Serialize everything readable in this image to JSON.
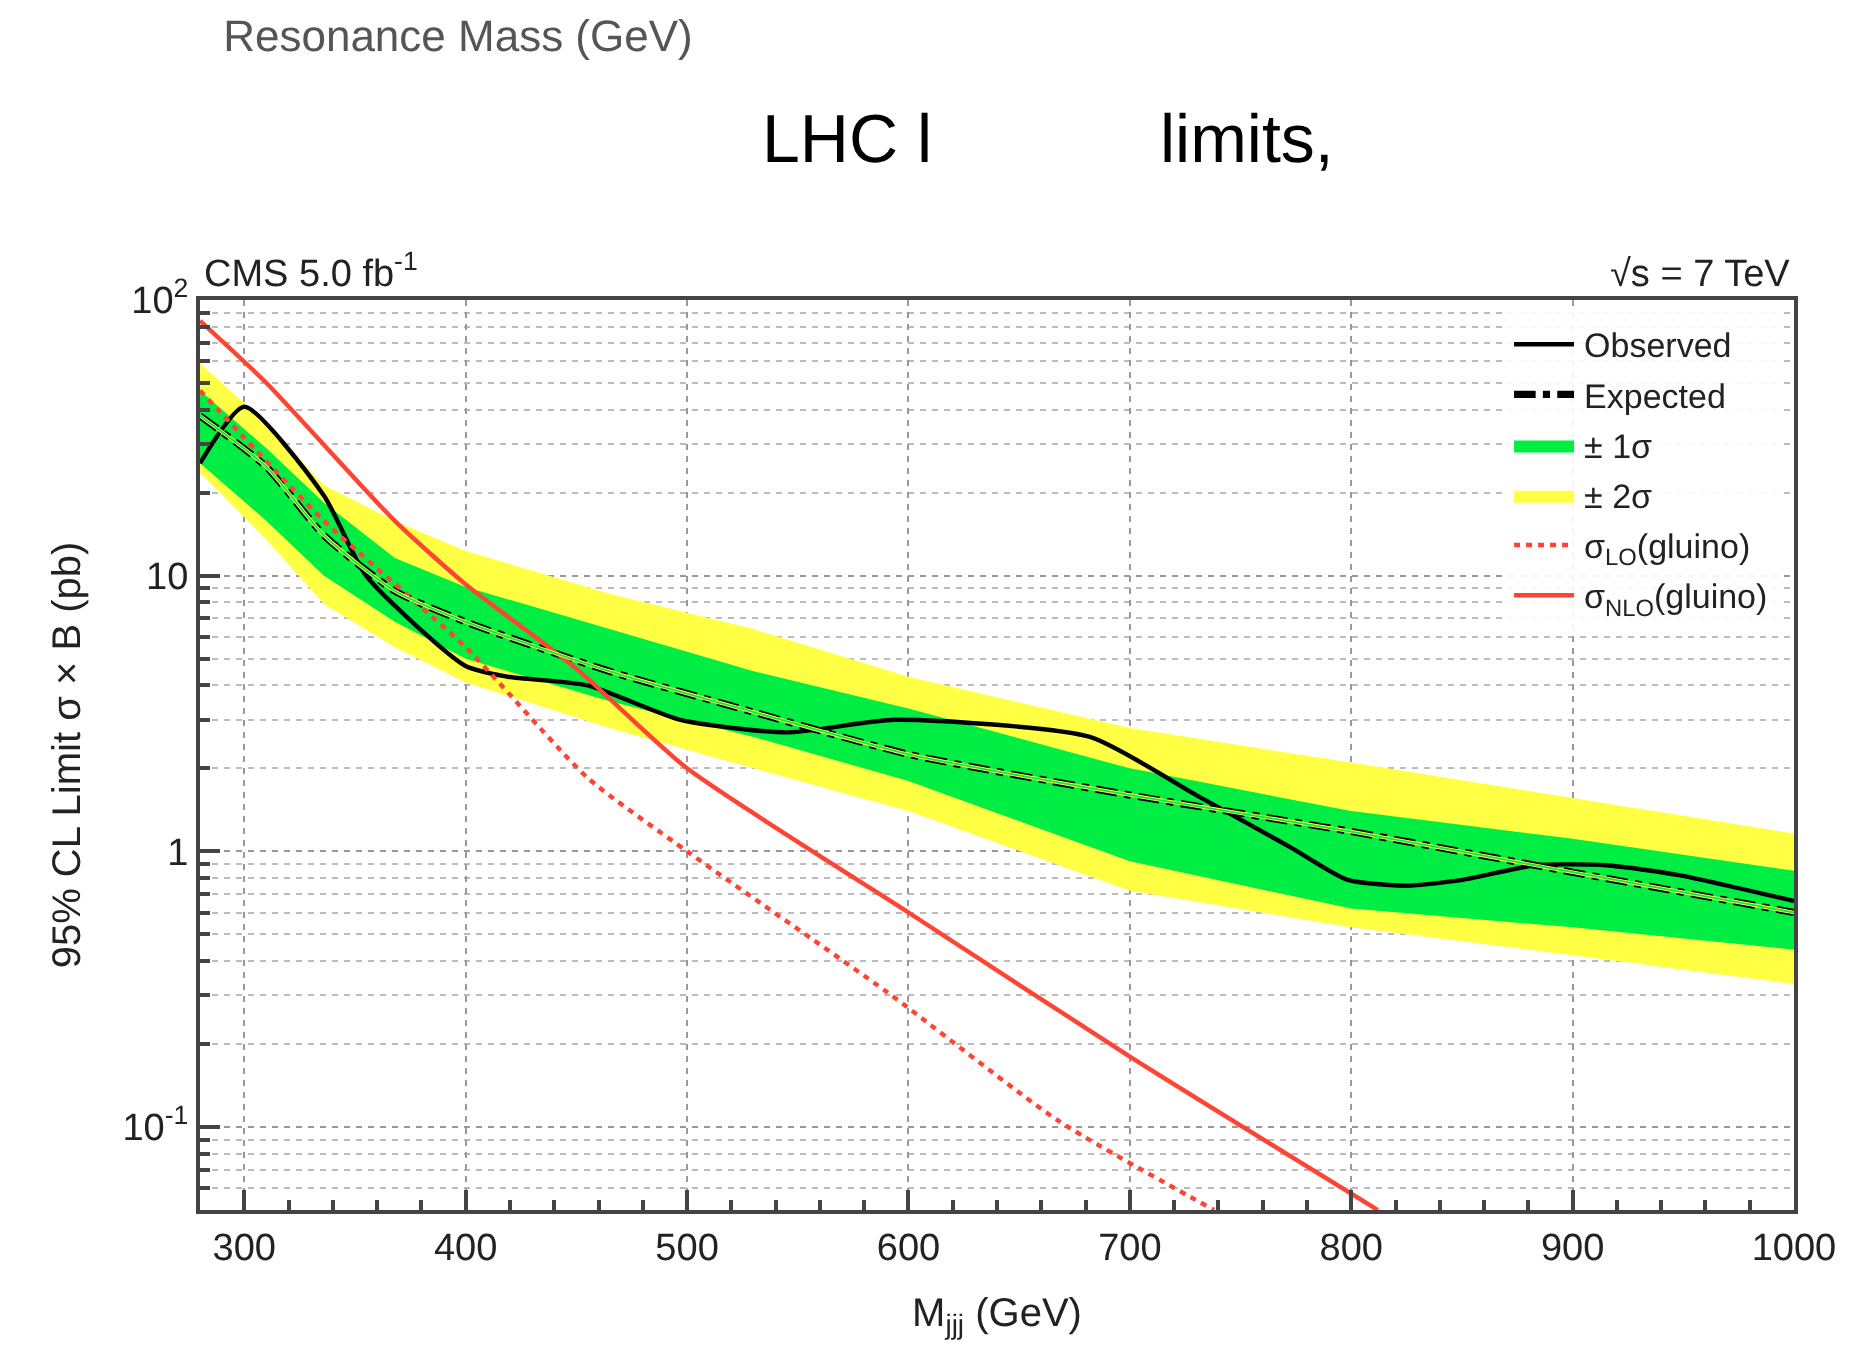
{
  "chart_data": {
    "type": "line",
    "title": "Resonance Mass (GeV)",
    "xlabel": "M$_{jjj}$ (GeV)",
    "ylabel": "95% CL Limit σ × B (pb)",
    "annotations": [
      "CMS 5.0 fb$^{-1}$",
      "√s = 7 TeV",
      "LHC l",
      "limits,"
    ],
    "log": "y",
    "grid": true,
    "legend": "top right",
    "marker": "none",
    "xlim": [
      280,
      1000
    ],
    "xticks": [
      300,
      400,
      500,
      600,
      700,
      800,
      900,
      1000
    ],
    "ylim": [
      0.05,
      100
    ],
    "yticks": [
      {
        "value": 0.1,
        "label": "10$^{-1}$"
      },
      1,
      10,
      {
        "value": 100,
        "label": "10$^{2}$"
      }
    ],
    "series": [
      {
        "name": "± 2σ",
        "color": "#ffff44",
        "x": [
          280,
          310,
          336,
          368,
          400,
          465,
          530,
          600,
          700,
          800,
          900,
          1000
        ],
        "values": [
          38,
          24.8,
          14,
          8.8,
          6.8,
          4.5,
          3.2,
          2.25,
          1.6,
          1.18,
          0.84,
          0.6
        ],
        "lower": [
          23.7,
          13.5,
          7.9,
          5.5,
          4.1,
          2.8,
          2.0,
          1.4,
          0.72,
          0.53,
          0.42,
          0.33
        ],
        "upper": [
          59,
          35.7,
          21.3,
          15.8,
          12.3,
          8.6,
          6.4,
          4.3,
          2.8,
          2.1,
          1.56,
          1.16
        ]
      },
      {
        "name": "± 1σ",
        "color": "#00ee44",
        "x": [
          280,
          310,
          336,
          368,
          400,
          465,
          530,
          600,
          700,
          800,
          900,
          1000
        ],
        "values": [
          38,
          24.8,
          14,
          8.8,
          6.8,
          4.5,
          3.2,
          2.25,
          1.6,
          1.18,
          0.84,
          0.6
        ],
        "lower": [
          25.6,
          15.8,
          10,
          6.8,
          5.0,
          3.5,
          2.6,
          1.8,
          0.92,
          0.62,
          0.53,
          0.44
        ],
        "upper": [
          47,
          29,
          18.4,
          11.6,
          9.1,
          6.4,
          4.5,
          3.3,
          2.0,
          1.4,
          1.11,
          0.85
        ]
      },
      {
        "name": "Observed",
        "color": "#000000",
        "line_style": "solid",
        "x": [
          280,
          300,
          336,
          355,
          400,
          419,
          455,
          497,
          545,
          594,
          682,
          730,
          773,
          798,
          825,
          851,
          883,
          915,
          948,
          1000
        ],
        "values": [
          25.6,
          41,
          19.5,
          10,
          4.7,
          4.3,
          4.0,
          3.0,
          2.7,
          3.0,
          2.6,
          1.6,
          1.03,
          0.79,
          0.75,
          0.79,
          0.89,
          0.89,
          0.82,
          0.66
        ]
      },
      {
        "name": "Expected",
        "color": "#000000",
        "line_style": "dashdot",
        "x": [
          280,
          310,
          336,
          368,
          400,
          465,
          530,
          600,
          700,
          800,
          900,
          1000
        ],
        "values": [
          38,
          24.8,
          14,
          8.8,
          6.8,
          4.5,
          3.2,
          2.25,
          1.6,
          1.18,
          0.84,
          0.6
        ]
      },
      {
        "name": "σ$_{LO}$(gluino)",
        "color": "#ff4433",
        "line_style": "dotted",
        "x": [
          280,
          336,
          400,
          455,
          500,
          590,
          668,
          738
        ],
        "values": [
          47,
          15.8,
          5.5,
          1.85,
          1.0,
          0.31,
          0.105,
          0.05
        ]
      },
      {
        "name": "σ$_{NLO}$(gluino)",
        "color": "#ff4433",
        "line_style": "solid",
        "x": [
          280,
          310,
          368,
          400,
          450,
          500,
          600,
          700,
          812
        ],
        "values": [
          84,
          50,
          15.8,
          9.3,
          4.6,
          2.0,
          0.6,
          0.18,
          0.05
        ]
      }
    ]
  }
}
